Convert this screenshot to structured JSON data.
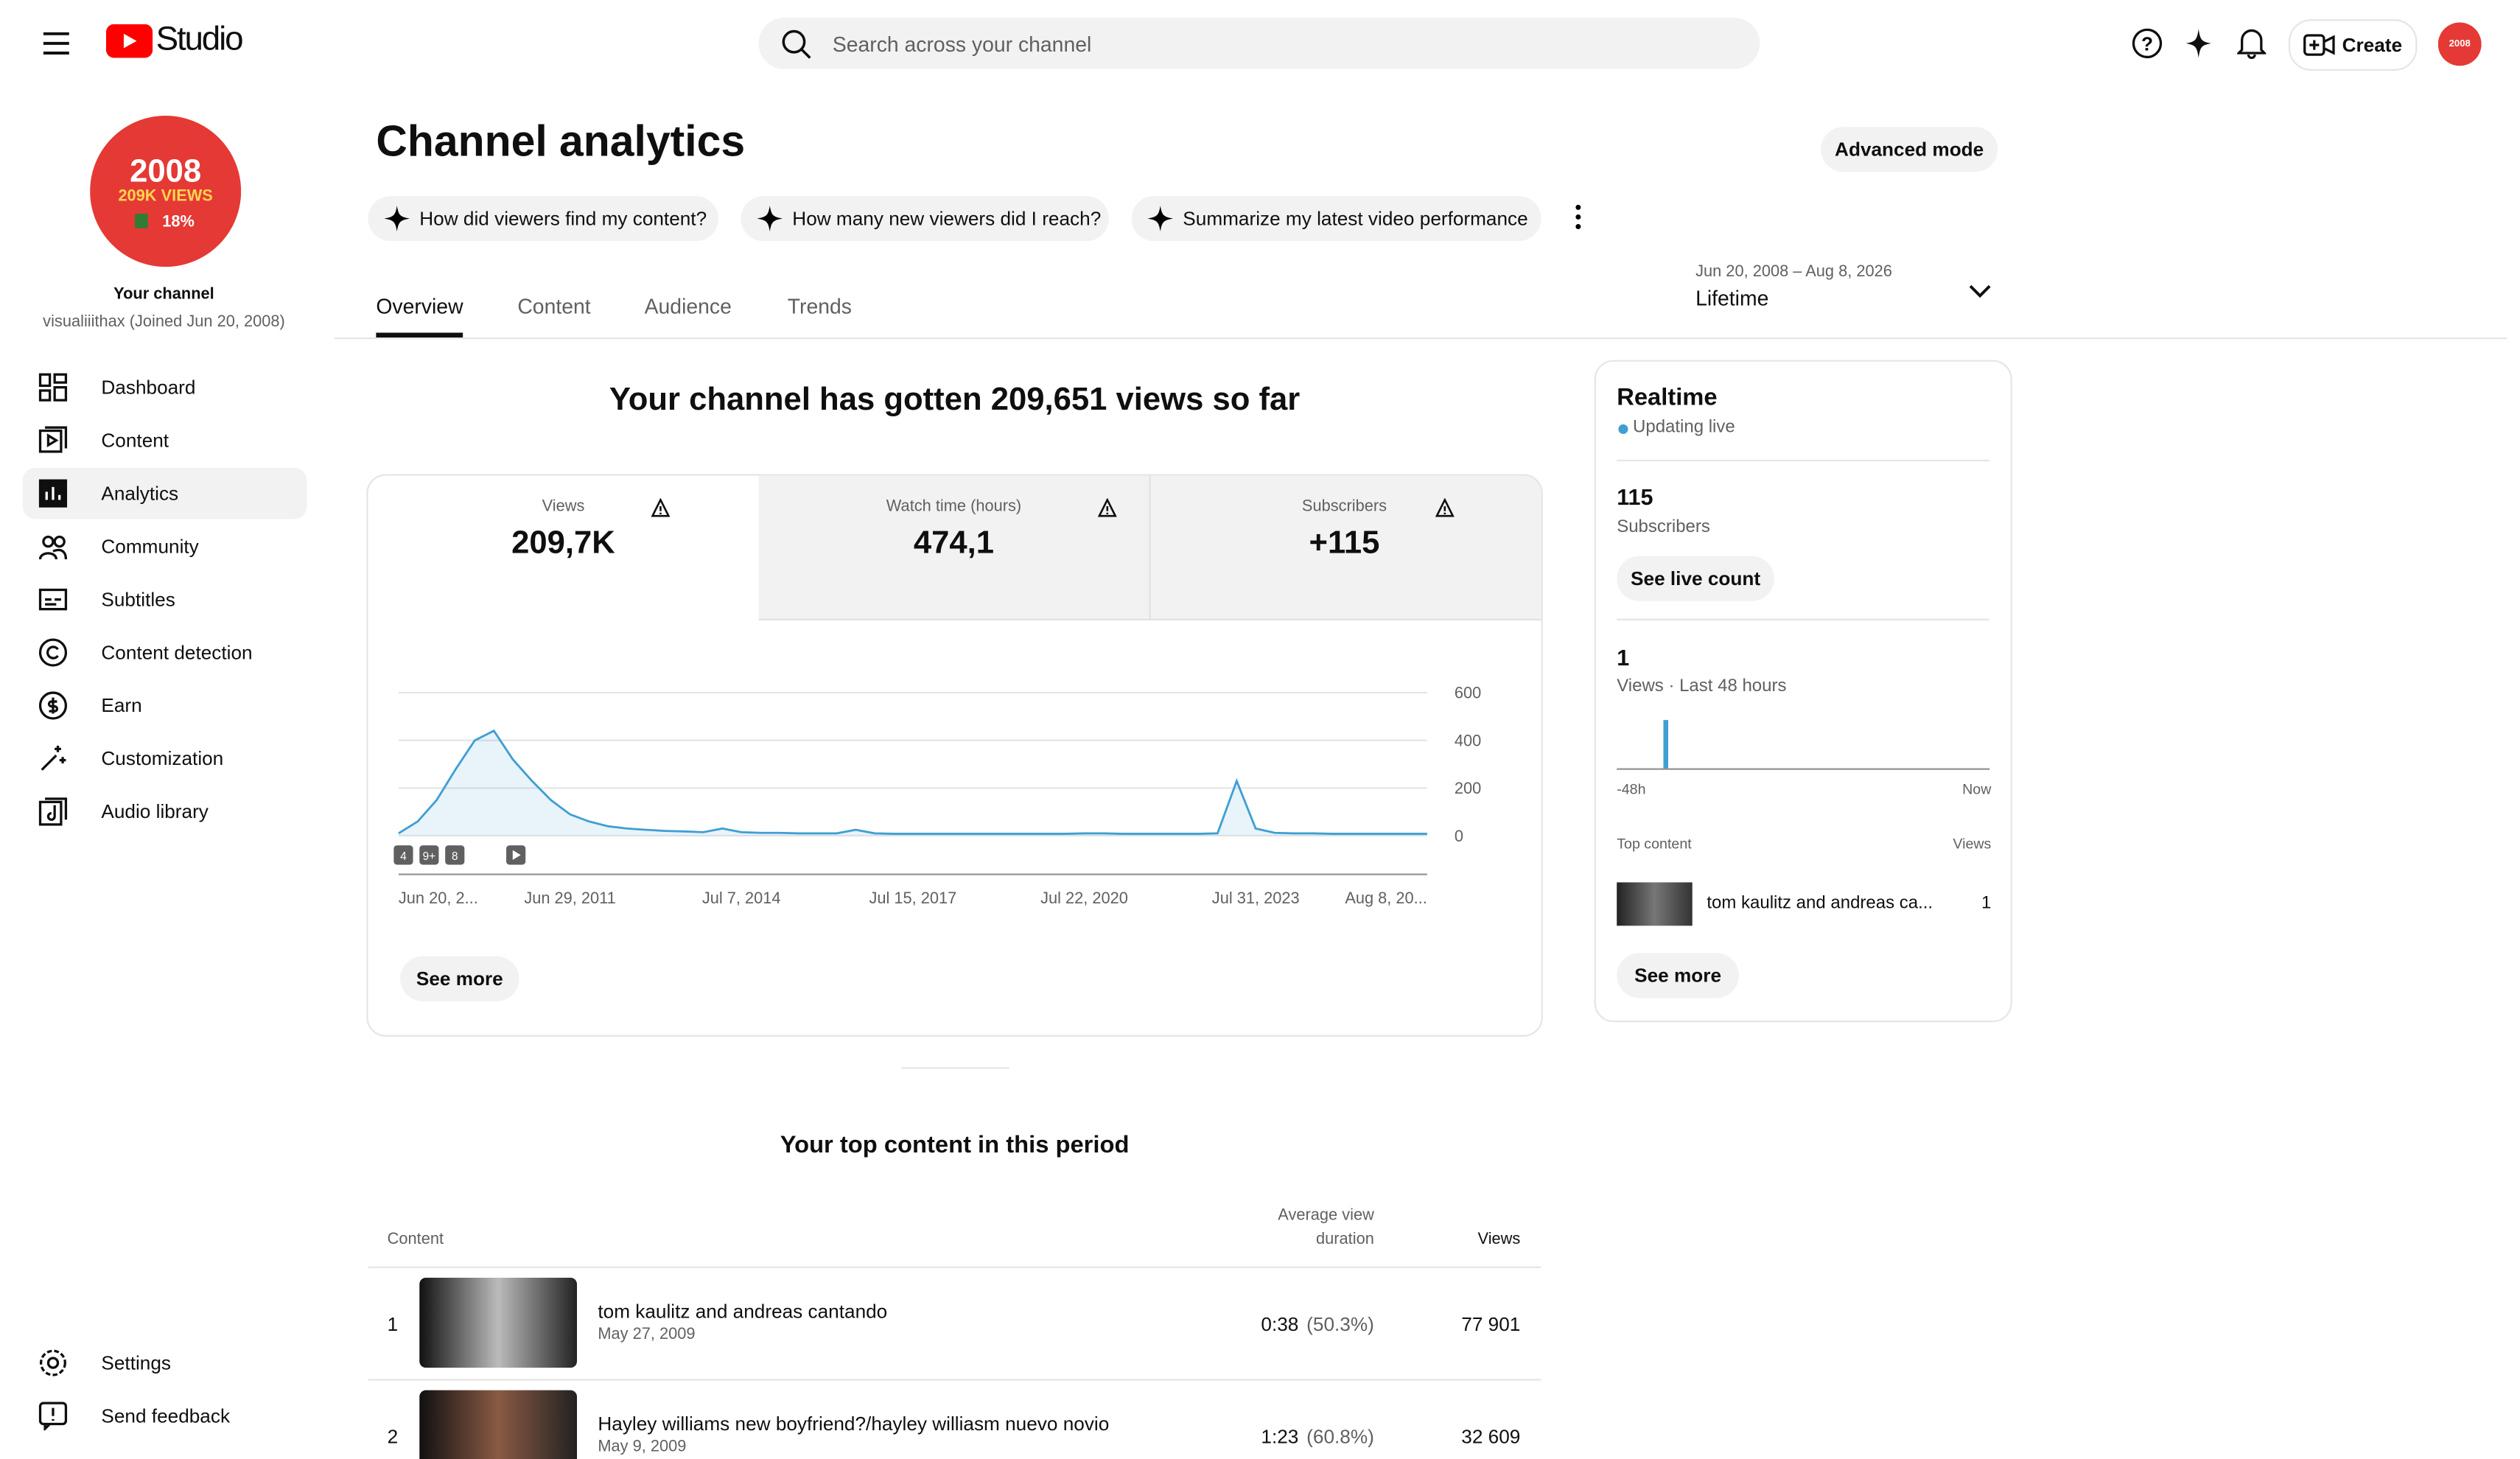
{
  "header": {
    "logo": "Studio",
    "search_placeholder": "Search across your channel",
    "create": "Create"
  },
  "sidebar": {
    "avatar": [
      "2008",
      "209K VIEWS",
      "18%"
    ],
    "channel_label": "Your channel",
    "channel_handle": "visualiiithax (Joined Jun 20, 2008)",
    "nav": [
      "Dashboard",
      "Content",
      "Analytics",
      "Community",
      "Subtitles",
      "Content detection",
      "Earn",
      "Customization",
      "Audio library"
    ],
    "bottom": [
      "Settings",
      "Send feedback"
    ]
  },
  "page": {
    "title": "Channel analytics",
    "advanced_mode": "Advanced mode",
    "prompts": [
      "How did viewers find my content?",
      "How many new viewers did I reach?",
      "Summarize my latest video performance"
    ],
    "tabs": [
      "Overview",
      "Content",
      "Audience",
      "Trends"
    ],
    "date_range": "Jun 20, 2008 – Aug 8, 2026",
    "period": "Lifetime"
  },
  "summary": "Your channel has gotten 209,651 views so far",
  "metrics": [
    {
      "label": "Views",
      "value": "209,7K"
    },
    {
      "label": "Watch time (hours)",
      "value": "474,1"
    },
    {
      "label": "Subscribers",
      "value": "+115"
    }
  ],
  "chart_data": {
    "type": "line",
    "color": "#3f9fd3",
    "categories": [
      "Jun 20, 2...",
      null,
      null,
      null,
      null,
      null,
      null,
      null,
      null,
      "Jun 29, 2011",
      null,
      null,
      null,
      null,
      null,
      null,
      null,
      null,
      "Jul 7, 2014",
      null,
      null,
      null,
      null,
      null,
      null,
      null,
      null,
      "Jul 15, 2017",
      null,
      null,
      null,
      null,
      null,
      null,
      null,
      null,
      "Jul 22, 2020",
      null,
      null,
      null,
      null,
      null,
      null,
      null,
      null,
      "Jul 31, 2023",
      null,
      null,
      null,
      null,
      null,
      null,
      null,
      null,
      "Aug 8, 20..."
    ],
    "values": [
      10,
      60,
      150,
      280,
      400,
      440,
      320,
      230,
      150,
      90,
      60,
      40,
      30,
      25,
      20,
      18,
      15,
      30,
      15,
      12,
      12,
      10,
      10,
      10,
      25,
      10,
      8,
      8,
      8,
      8,
      8,
      8,
      8,
      8,
      8,
      8,
      10,
      10,
      8,
      8,
      8,
      8,
      8,
      10,
      230,
      30,
      12,
      10,
      10,
      8,
      8,
      8,
      8,
      8,
      8
    ],
    "ylim": [
      0,
      600
    ],
    "yticks": [
      0,
      200,
      400,
      600
    ],
    "grid": true,
    "badges": [
      "4",
      "9+",
      "8"
    ],
    "see_more": "See more"
  },
  "realtime": {
    "title": "Realtime",
    "status": "Updating live",
    "subscribers": "115",
    "subscribers_label": "Subscribers",
    "live_count": "See live count",
    "views": "1",
    "views_label": "Views · Last 48 hours",
    "axis_start": "-48h",
    "axis_end": "Now",
    "top_content_label": "Top content",
    "views_column": "Views",
    "top_title": "tom kaulitz and andreas ca...",
    "top_views": "1",
    "see_more": "See more"
  },
  "top_content": {
    "title": "Your top content in this period",
    "columns": [
      "Content",
      "Average view",
      "duration",
      "Views"
    ],
    "rows": [
      {
        "rank": "1",
        "title": "tom kaulitz and andreas cantando",
        "date": "May 27, 2009",
        "duration": "0:38",
        "percent": "(50.3%)",
        "views": "77 901"
      },
      {
        "rank": "2",
        "title": "Hayley williams new boyfriend?/hayley williasm nuevo novio",
        "date": "May 9, 2009",
        "duration": "1:23",
        "percent": "(60.8%)",
        "views": "32 609"
      }
    ]
  }
}
